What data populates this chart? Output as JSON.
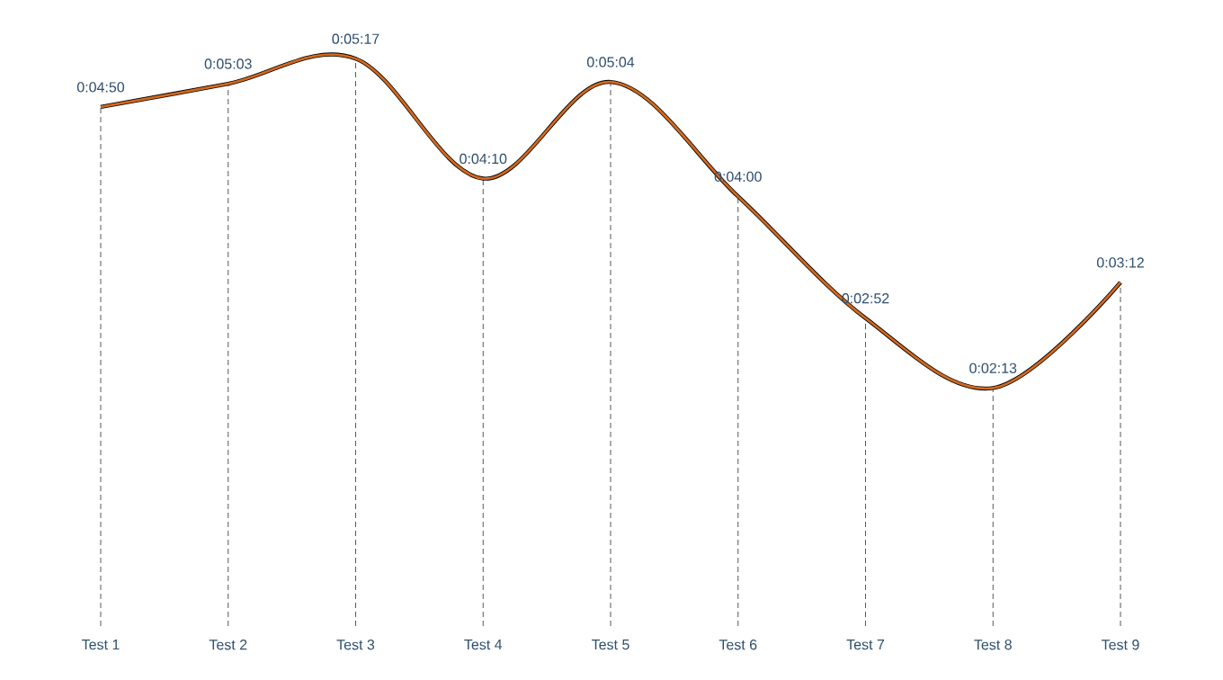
{
  "chart_data": {
    "type": "line",
    "categories": [
      "Test 1",
      "Test 2",
      "Test 3",
      "Test 4",
      "Test 5",
      "Test 6",
      "Test 7",
      "Test 8",
      "Test 9"
    ],
    "series": [
      {
        "color": "#d2691e",
        "values": [
          290,
          303,
          317,
          250,
          304,
          240,
          172,
          133,
          192
        ],
        "value_labels": [
          "0:04:50",
          "0:05:03",
          "0:05:17",
          "0:04:10",
          "0:05:04",
          "0:04:00",
          "0:02:52",
          "0:02:13",
          "0:03:12"
        ]
      }
    ],
    "marker": "none",
    "line_style": "solid",
    "grid": "x"
  }
}
